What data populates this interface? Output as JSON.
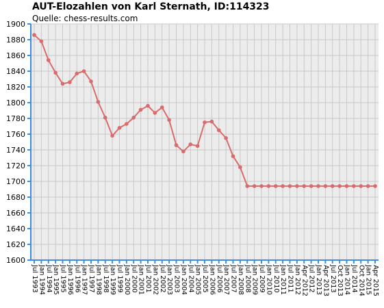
{
  "chart_data": {
    "type": "line",
    "title": "AUT-Elozahlen von Karl Sternath, ID:114323",
    "subtitle": "Quelle: chess-results.com",
    "xlabel": "",
    "ylabel": "",
    "ylim": [
      1600,
      1900
    ],
    "yticks": [
      1600,
      1620,
      1640,
      1660,
      1680,
      1700,
      1720,
      1740,
      1760,
      1780,
      1800,
      1820,
      1840,
      1860,
      1880,
      1900
    ],
    "grid": true,
    "legend": "none",
    "categories": [
      "Jul 1993",
      "Jan 1994",
      "Jul 1994",
      "Jan 1995",
      "Jul 1995",
      "Jan 1996",
      "Jul 1996",
      "Jan 1997",
      "Jul 1997",
      "Jan 1998",
      "Jul 1998",
      "Jan 1999",
      "Jul 1999",
      "Jan 2000",
      "Jul 2000",
      "Jan 2001",
      "Jul 2001",
      "Jan 2002",
      "Jul 2002",
      "Jan 2003",
      "Jul 2003",
      "Jan 2004",
      "Jul 2004",
      "Jan 2005",
      "Jul 2005",
      "Jan 2006",
      "Jul 2006",
      "Jan 2007",
      "Jul 2007",
      "Jan 2008",
      "Jul 2008",
      "Jan 2009",
      "Jul 2009",
      "Jan 2010",
      "Jul 2010",
      "Jan 2011",
      "Jul 2011",
      "Jan 2012",
      "Apr 2012",
      "Jul 2012",
      "Jan 2013",
      "Apr 2013",
      "Jul 2013",
      "Oct 2013",
      "Jan 2014",
      "Jul 2014",
      "Oct 2014",
      "Jan 2015",
      "Apr 2015"
    ],
    "series": [
      {
        "color": "#d96b6b",
        "values": [
          1886,
          1878,
          1854,
          1838,
          1824,
          1826,
          1837,
          1840,
          1827,
          1801,
          1781,
          1758,
          1768,
          1773,
          1781,
          1791,
          1796,
          1787,
          1794,
          1778,
          1746,
          1738,
          1747,
          1745,
          1775,
          1776,
          1765,
          1755,
          1732,
          1718,
          1694,
          1694,
          1694,
          1694,
          1694,
          1694,
          1694,
          1694,
          1694,
          1694,
          1694,
          1694,
          1694,
          1694,
          1694,
          1694,
          1694,
          1694,
          1694
        ]
      }
    ]
  },
  "colors": {
    "plot_background": "#ececec",
    "grid": "#c8c8c8",
    "axis": "#3a8ee6",
    "line": "#d96b6b"
  }
}
